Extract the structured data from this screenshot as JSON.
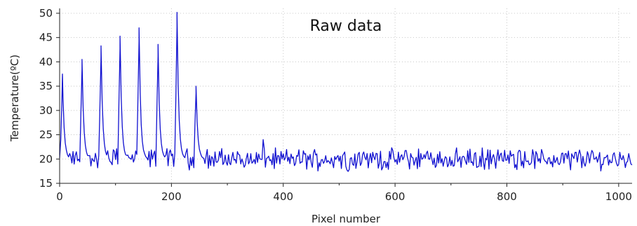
{
  "chart_data": {
    "type": "line",
    "title": "Raw data",
    "xlabel": "Pixel number",
    "ylabel": "Temperature(ºC)",
    "xlim": [
      0,
      1024
    ],
    "ylim": [
      15,
      51
    ],
    "x_ticks": [
      0,
      200,
      400,
      600,
      800,
      1000
    ],
    "y_ticks": [
      15,
      20,
      25,
      30,
      35,
      40,
      45,
      50
    ],
    "grid": true,
    "line_color": "#1010d0",
    "series": [
      {
        "peaks": [
          {
            "x": 5,
            "y": 37.5
          },
          {
            "x": 40,
            "y": 40.5
          },
          {
            "x": 74,
            "y": 43.3
          },
          {
            "x": 108,
            "y": 45.3
          },
          {
            "x": 142,
            "y": 47.0
          },
          {
            "x": 176,
            "y": 43.6
          },
          {
            "x": 210,
            "y": 50.2
          },
          {
            "x": 244,
            "y": 35.0
          }
        ],
        "baseline": 20,
        "baseline_range": [
          16,
          24
        ],
        "x_start": 0,
        "x_end": 1024
      }
    ]
  }
}
